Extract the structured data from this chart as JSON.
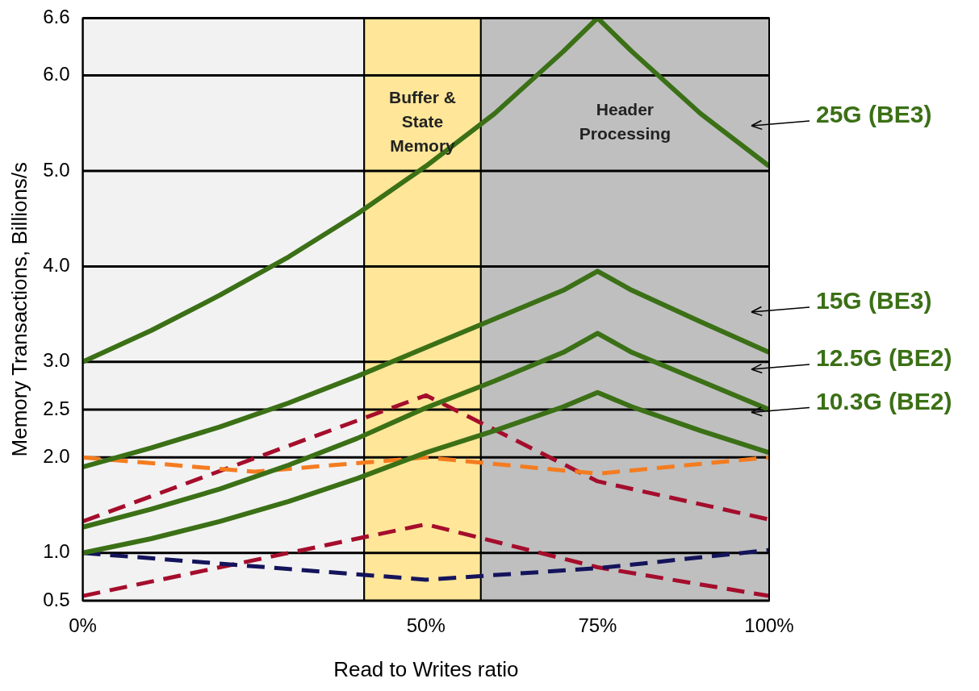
{
  "chart_data": {
    "type": "line",
    "xlabel": "Read to Writes ratio",
    "ylabel": "Memory Transactions, Billions/s",
    "xlim": [
      0,
      100
    ],
    "xticks": [
      {
        "value": 0,
        "label": "0%"
      },
      {
        "value": 50,
        "label": "50%"
      },
      {
        "value": 75,
        "label": "75%"
      },
      {
        "value": 100,
        "label": "100%"
      }
    ],
    "ylim": [
      0.5,
      6.6
    ],
    "yticks": [
      {
        "value": 0.5,
        "label": "0.5"
      },
      {
        "value": 1,
        "label": "1.0"
      },
      {
        "value": 2,
        "label": "2.0"
      },
      {
        "value": 2.5,
        "label": "2.5"
      },
      {
        "value": 3,
        "label": "3.0"
      },
      {
        "value": 4,
        "label": "4.0"
      },
      {
        "value": 5,
        "label": "5.0"
      },
      {
        "value": 6,
        "label": "6.0"
      },
      {
        "value": 6.6,
        "label": "6.6"
      }
    ],
    "grid": "y",
    "legend": false,
    "bands": [
      {
        "axis": "x",
        "from": 0,
        "to": 41,
        "label": null,
        "color": "#f2f2f2"
      },
      {
        "axis": "x",
        "from": 41,
        "to": 58,
        "label": "Buffer & State Memory",
        "color": "#ffe699"
      },
      {
        "axis": "x",
        "from": 58,
        "to": 100,
        "label": "Header Processing",
        "color": "#bfbfbf"
      }
    ],
    "series": [
      {
        "name": "25G (BE3)",
        "color": "#3b7016",
        "line_style": "solid",
        "x": [
          0,
          10,
          20,
          30,
          40,
          50,
          60,
          70,
          75,
          80,
          90,
          100
        ],
        "values": [
          3.0,
          3.33,
          3.7,
          4.1,
          4.55,
          5.05,
          5.6,
          6.25,
          6.6,
          6.25,
          5.6,
          5.05
        ]
      },
      {
        "name": "15G (BE3)",
        "color": "#3b7016",
        "line_style": "solid",
        "x": [
          0,
          10,
          20,
          30,
          40,
          50,
          60,
          70,
          75,
          80,
          90,
          100
        ],
        "values": [
          1.9,
          2.1,
          2.32,
          2.57,
          2.85,
          3.15,
          3.45,
          3.75,
          3.95,
          3.75,
          3.42,
          3.1
        ]
      },
      {
        "name": "12.5G (BE2)",
        "color": "#3b7016",
        "line_style": "solid",
        "x": [
          0,
          10,
          20,
          30,
          40,
          50,
          60,
          70,
          75,
          80,
          90,
          100
        ],
        "values": [
          1.27,
          1.46,
          1.67,
          1.92,
          2.2,
          2.52,
          2.8,
          3.1,
          3.3,
          3.1,
          2.8,
          2.5
        ]
      },
      {
        "name": "10.3G (BE2)",
        "color": "#3b7016",
        "line_style": "solid",
        "x": [
          0,
          10,
          20,
          30,
          40,
          50,
          60,
          70,
          75,
          80,
          90,
          100
        ],
        "values": [
          1.0,
          1.15,
          1.33,
          1.54,
          1.78,
          2.05,
          2.28,
          2.53,
          2.68,
          2.53,
          2.28,
          2.05
        ]
      },
      {
        "color": "#f47c20",
        "line_style": "dashed",
        "x": [
          0,
          25,
          50,
          75,
          100
        ],
        "values": [
          2.0,
          1.85,
          2.0,
          1.83,
          2.0
        ]
      },
      {
        "color": "#a50d2c",
        "line_style": "dashed",
        "x": [
          0,
          50,
          75,
          100
        ],
        "values": [
          1.33,
          2.65,
          1.75,
          1.35
        ]
      },
      {
        "color": "#14145c",
        "line_style": "dashed",
        "x": [
          0,
          50,
          75,
          100
        ],
        "values": [
          1.0,
          0.72,
          0.84,
          1.03
        ]
      },
      {
        "color": "#a50d2c",
        "line_style": "dashed",
        "x": [
          0,
          50,
          75,
          100
        ],
        "values": [
          0.55,
          1.3,
          0.85,
          0.55
        ]
      }
    ]
  }
}
